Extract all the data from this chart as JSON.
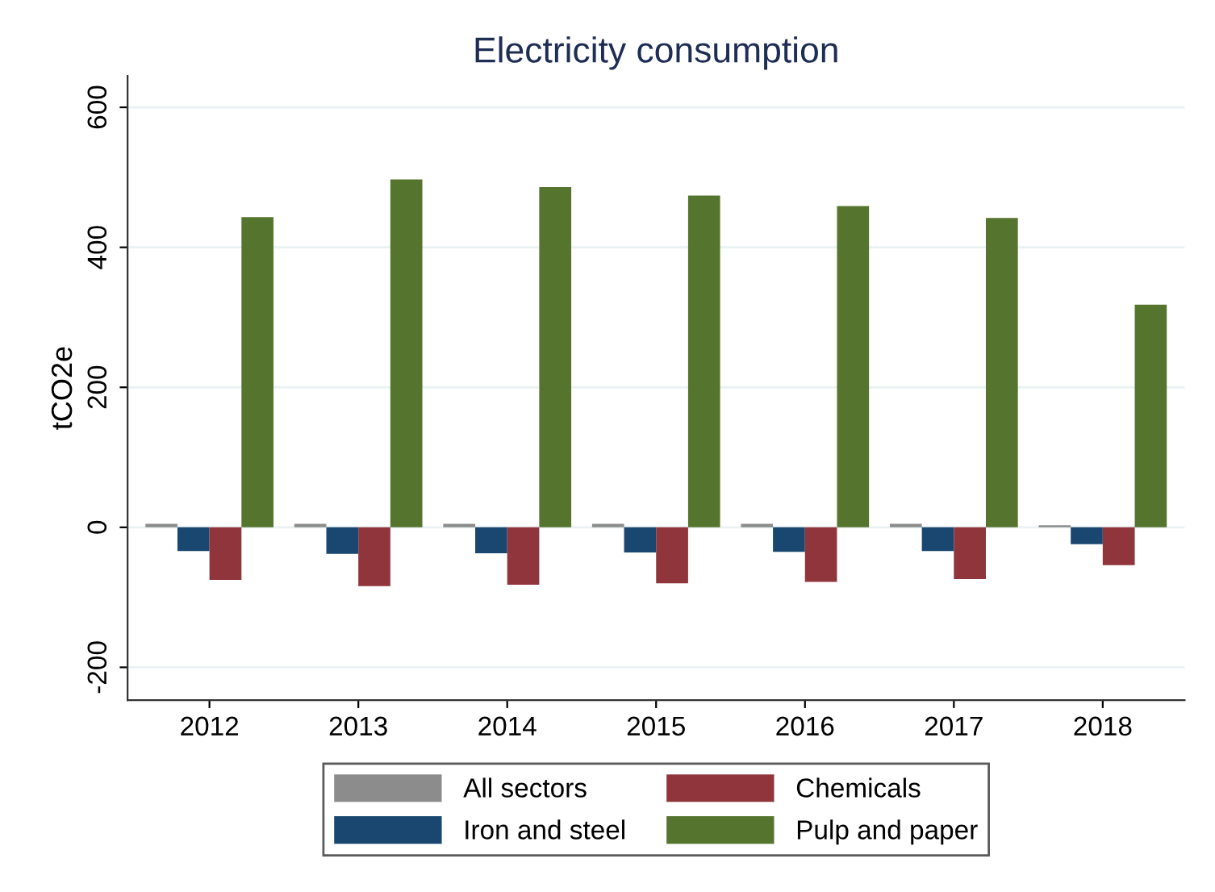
{
  "chart_data": {
    "type": "bar",
    "title": "Electricity consumption",
    "ylabel": "tCO2e",
    "categories": [
      "2012",
      "2013",
      "2014",
      "2015",
      "2016",
      "2017",
      "2018"
    ],
    "series": [
      {
        "name": "All sectors",
        "color": "#8c8c8c",
        "values": [
          5,
          5,
          5,
          5,
          5,
          5,
          3
        ]
      },
      {
        "name": "Iron and steel",
        "color": "#1a476f",
        "values": [
          -34,
          -38,
          -37,
          -36,
          -35,
          -34,
          -24
        ]
      },
      {
        "name": "Chemicals",
        "color": "#90353b",
        "values": [
          -75,
          -84,
          -82,
          -80,
          -78,
          -74,
          -54
        ]
      },
      {
        "name": "Pulp and paper",
        "color": "#55752f",
        "values": [
          443,
          497,
          486,
          474,
          459,
          442,
          318
        ]
      }
    ],
    "ylim": [
      -247,
      645
    ],
    "yticks": [
      {
        "value": -200,
        "label": "-200"
      },
      0,
      200,
      400,
      600
    ],
    "grid": "y",
    "legend": "bottom"
  }
}
